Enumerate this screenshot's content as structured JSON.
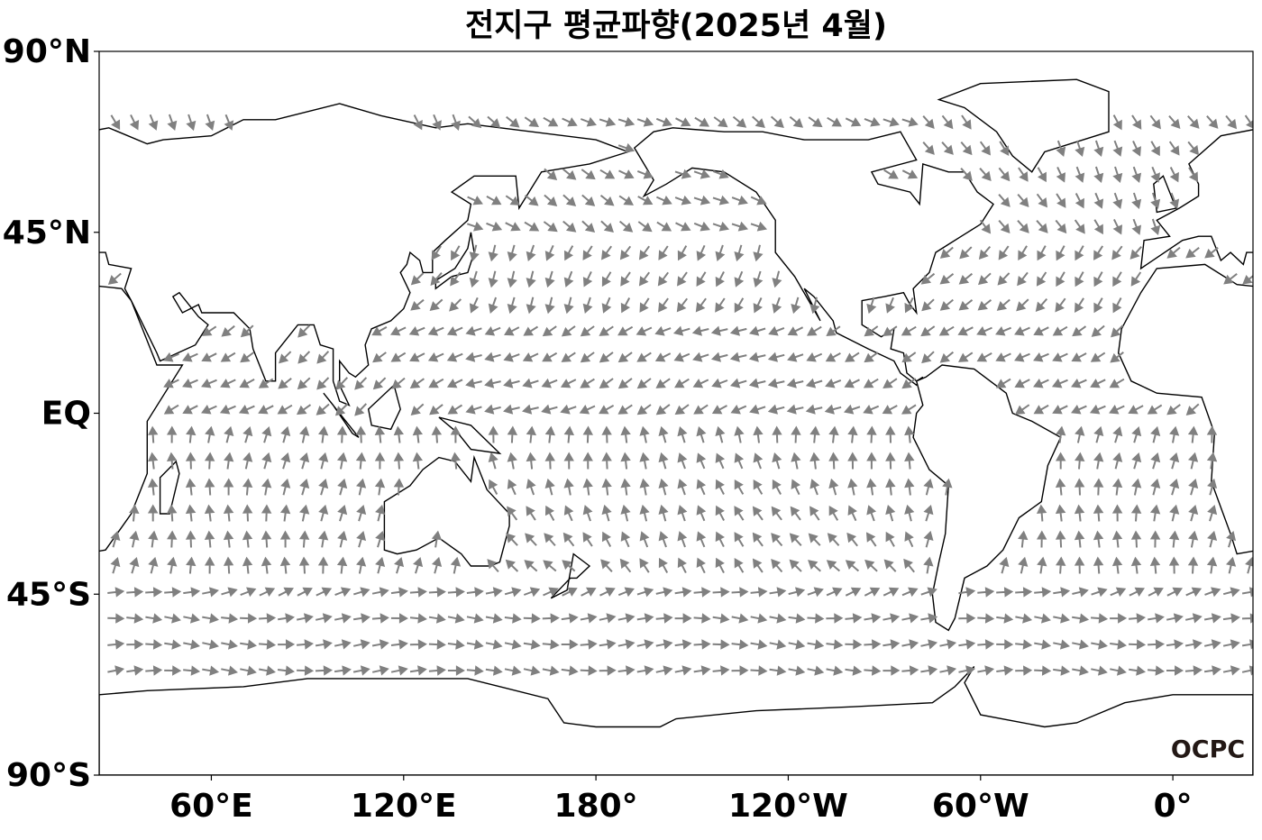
{
  "title": "전지구 평균파향(2025년 4월)",
  "map": {
    "lon_range": [
      25,
      385
    ],
    "lat_range": [
      -90,
      90
    ],
    "lat_ticks": [
      {
        "value": 90,
        "label": "90°N"
      },
      {
        "value": 45,
        "label": "45°N"
      },
      {
        "value": 0,
        "label": "EQ"
      },
      {
        "value": -45,
        "label": "45°S"
      },
      {
        "value": -90,
        "label": "90°S"
      }
    ],
    "lon_ticks": [
      {
        "value": 60,
        "label": "60°E"
      },
      {
        "value": 120,
        "label": "120°E"
      },
      {
        "value": 180,
        "label": "180°"
      },
      {
        "value": 240,
        "label": "120°W"
      },
      {
        "value": 300,
        "label": "60°W"
      },
      {
        "value": 360,
        "label": "0°"
      }
    ]
  },
  "logo": "OCPC"
}
